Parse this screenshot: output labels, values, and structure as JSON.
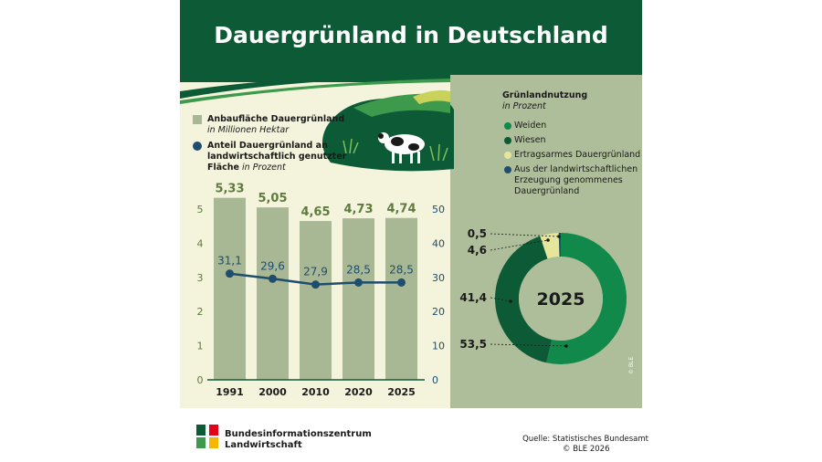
{
  "title": "Dauergrünland in Deutschland",
  "legend_left": {
    "bar_label": "Anbaufläche Dauergrünland",
    "bar_unit": "in Millionen Hektar",
    "line_label_line1": "Anteil Dauergrünland an",
    "line_label_line2": "landwirtschaftlich genutzter",
    "line_label_line3": "Fläche",
    "line_unit": "in Prozent",
    "bar_color": "#a9b894",
    "line_color": "#1e4d6e"
  },
  "legend_right": {
    "heading": "Grünlandnutzung",
    "unit": "in Prozent",
    "items": [
      {
        "label": "Weiden",
        "color": "#10894a"
      },
      {
        "label": "Wiesen",
        "color": "#0d5a36"
      },
      {
        "label": "Ertragsarmes Dauergrünland",
        "color": "#e6e59c"
      },
      {
        "label": "Aus der landwirtschaftlichen",
        "label2": "Erzeugung genommenes",
        "label3": "Dauergrünland",
        "color": "#1e4d6e"
      }
    ]
  },
  "footer": {
    "org_line1": "Bundesinformationszentrum",
    "org_line2": "Landwirtschaft",
    "source_line1": "Quelle: Statistisches Bundesamt",
    "source_line2": "© BLE 2026",
    "side_copyright": "© BLE"
  },
  "chart_data": [
    {
      "type": "bar",
      "categories": [
        "1991",
        "2000",
        "2010",
        "2020",
        "2025"
      ],
      "series": [
        {
          "name": "Anbaufläche Dauergrünland",
          "values": [
            5.33,
            5.05,
            4.65,
            4.73,
            4.74
          ],
          "labels": [
            "5,33",
            "5,05",
            "4,65",
            "4,73",
            "4,74"
          ]
        },
        {
          "name": "Anteil Dauergrünland an landwirtschaftlich genutzter Fläche",
          "values": [
            31.1,
            29.6,
            27.9,
            28.5,
            28.5
          ],
          "labels": [
            "31,1",
            "29,6",
            "27,9",
            "28,5",
            "28,5"
          ]
        }
      ],
      "left_axis": {
        "ylim": [
          0,
          5
        ],
        "ticks": [
          "0",
          "1",
          "2",
          "3",
          "4",
          "5"
        ]
      },
      "right_axis": {
        "ylim": [
          0,
          50
        ],
        "ticks": [
          "0",
          "10",
          "20",
          "30",
          "40",
          "50"
        ]
      },
      "grid": false
    },
    {
      "type": "pie",
      "center_label": "2025",
      "slices": [
        {
          "name": "Weiden",
          "value": 53.5,
          "label": "53,5",
          "color": "#10894a"
        },
        {
          "name": "Wiesen",
          "value": 41.4,
          "label": "41,4",
          "color": "#0d5a36"
        },
        {
          "name": "Ertragsarmes Dauergrünland",
          "value": 4.6,
          "label": "4,6",
          "color": "#e6e59c"
        },
        {
          "name": "Aus der landwirtschaftlichen Erzeugung genommenes Dauergrünland",
          "value": 0.5,
          "label": "0,5",
          "color": "#1e4d6e"
        }
      ]
    }
  ]
}
